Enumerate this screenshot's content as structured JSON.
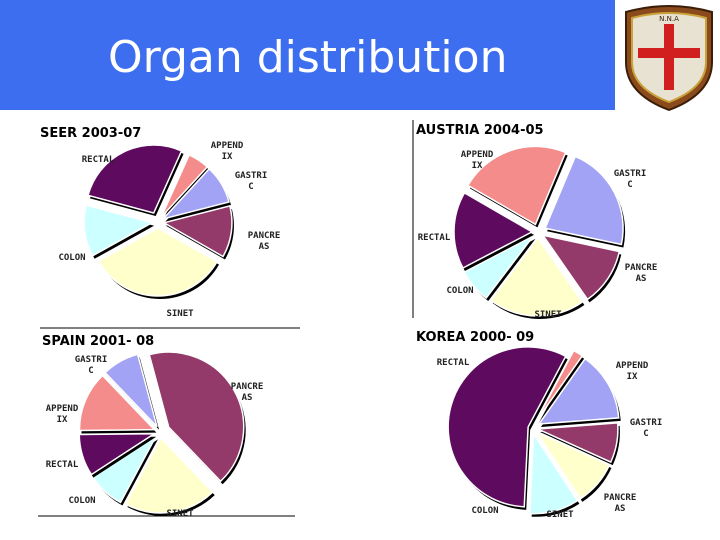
{
  "slide": {
    "title": "Organ distribution",
    "banner_color": "#3d6ef0",
    "logo_text": "N.N.A"
  },
  "chart_data": [
    {
      "type": "pie",
      "title": "SEER 2003-07",
      "slices": [
        {
          "label": "RECTAL",
          "value": 27,
          "color": "#5e0a5e"
        },
        {
          "label": "APPEND IX",
          "value": 5,
          "color": "#f48c8c"
        },
        {
          "label": "GASTRI C",
          "value": 9,
          "color": "#a3a3f5"
        },
        {
          "label": "PANCRE AS",
          "value": 12,
          "color": "#933a6a"
        },
        {
          "label": "SINET",
          "value": 33,
          "color": "#ffffcc"
        },
        {
          "label": "COLON",
          "value": 12,
          "color": "#ccffff"
        }
      ]
    },
    {
      "type": "pie",
      "title": "AUSTRIA 2004-05",
      "slices": [
        {
          "label": "APPEND IX",
          "value": 23,
          "color": "#f48c8c"
        },
        {
          "label": "GASTRI C",
          "value": 22,
          "color": "#a3a3f5"
        },
        {
          "label": "PANCRE AS",
          "value": 12,
          "color": "#933a6a"
        },
        {
          "label": "SINET",
          "value": 20,
          "color": "#ffffcc"
        },
        {
          "label": "COLON",
          "value": 7,
          "color": "#ccffff"
        },
        {
          "label": "RECTAL",
          "value": 16,
          "color": "#5e0a5e"
        }
      ]
    },
    {
      "type": "pie",
      "title": "SPAIN 2001- 08",
      "slices": [
        {
          "label": "PANCRE AS",
          "value": 42,
          "color": "#933a6a"
        },
        {
          "label": "SINET",
          "value": 20,
          "color": "#ffffcc"
        },
        {
          "label": "COLON",
          "value": 8,
          "color": "#ccffff"
        },
        {
          "label": "RECTAL",
          "value": 9,
          "color": "#5e0a5e"
        },
        {
          "label": "APPEND IX",
          "value": 13,
          "color": "#f48c8c"
        },
        {
          "label": "GASTRI C",
          "value": 8,
          "color": "#a3a3f5"
        }
      ]
    },
    {
      "type": "pie",
      "title": "KOREA 2000- 09",
      "slices": [
        {
          "label": "APPEND IX",
          "value": 2,
          "color": "#f48c8c"
        },
        {
          "label": "GASTRI C",
          "value": 14,
          "color": "#a3a3f5"
        },
        {
          "label": "PANCRE AS",
          "value": 8,
          "color": "#933a6a"
        },
        {
          "label": "SINET",
          "value": 9,
          "color": "#ffffcc"
        },
        {
          "label": "COLON",
          "value": 10,
          "color": "#ccffff"
        },
        {
          "label": "RECTAL",
          "value": 57,
          "color": "#5e0a5e"
        }
      ]
    }
  ]
}
